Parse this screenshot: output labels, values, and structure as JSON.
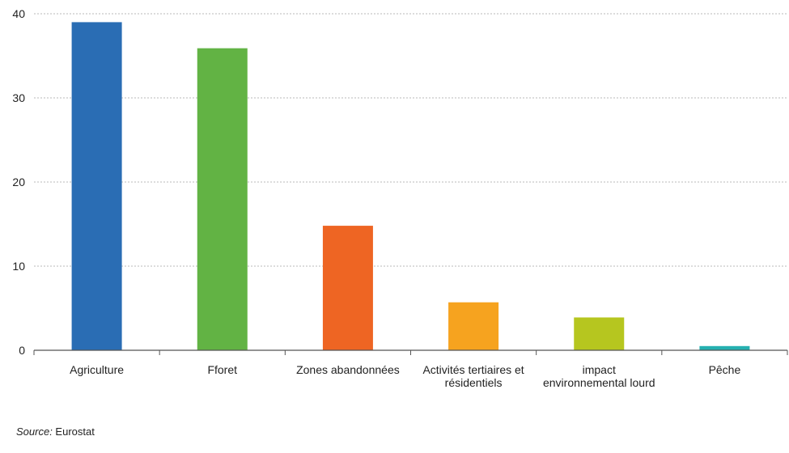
{
  "chart_data": {
    "type": "bar",
    "categories": [
      [
        "Agriculture"
      ],
      [
        "Fforet"
      ],
      [
        "Zones abandonnées"
      ],
      [
        "Activités tertiaires et",
        "résidentiels"
      ],
      [
        "impact",
        "environnemental lourd"
      ],
      [
        "Pêche"
      ]
    ],
    "values": [
      39,
      35.9,
      14.8,
      5.7,
      3.9,
      0.5
    ],
    "colors": [
      "#2a6db4",
      "#62b344",
      "#ee6523",
      "#f6a31f",
      "#b6c61f",
      "#26b1b1"
    ],
    "ylim": [
      0,
      40
    ],
    "yticks": [
      "0",
      "10",
      "20",
      "30",
      "40"
    ],
    "grid": true,
    "title": "",
    "xlabel": "",
    "ylabel": ""
  },
  "footer": {
    "source_label": "Source:",
    "source_value": " Eurostat"
  }
}
